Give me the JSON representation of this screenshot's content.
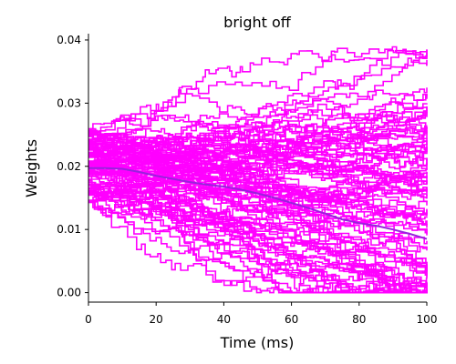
{
  "chart_data": {
    "type": "line",
    "title": "bright off",
    "xlabel": "Time (ms)",
    "ylabel": "Weights",
    "xlim": [
      0,
      100
    ],
    "ylim": [
      -0.0015,
      0.041
    ],
    "xticks": [
      0,
      20,
      40,
      60,
      80,
      100
    ],
    "xtick_labels": [
      "0",
      "20",
      "40",
      "60",
      "80",
      "100"
    ],
    "yticks": [
      0.0,
      0.01,
      0.02,
      0.03,
      0.04
    ],
    "ytick_labels": [
      "0.00",
      "0.01",
      "0.02",
      "0.03",
      "0.04"
    ],
    "grid": false,
    "legend": "none",
    "individual_traces": {
      "color": "#ff00ff",
      "count": 100,
      "step_style": true,
      "start_range": [
        0.014,
        0.026
      ],
      "max_value": 0.039,
      "min_value": 0.0
    },
    "series": [
      {
        "color": "#9922dd",
        "x": [
          0,
          5,
          10,
          15,
          20,
          25,
          30,
          35,
          40,
          45,
          50,
          55,
          60,
          65,
          70,
          75,
          80,
          85,
          90,
          95,
          100
        ],
        "y": [
          0.0197,
          0.0197,
          0.0196,
          0.0191,
          0.0185,
          0.018,
          0.0175,
          0.0171,
          0.0168,
          0.0163,
          0.0157,
          0.015,
          0.0142,
          0.0134,
          0.0125,
          0.0116,
          0.011,
          0.0106,
          0.01,
          0.0093,
          0.0085
        ]
      }
    ]
  }
}
